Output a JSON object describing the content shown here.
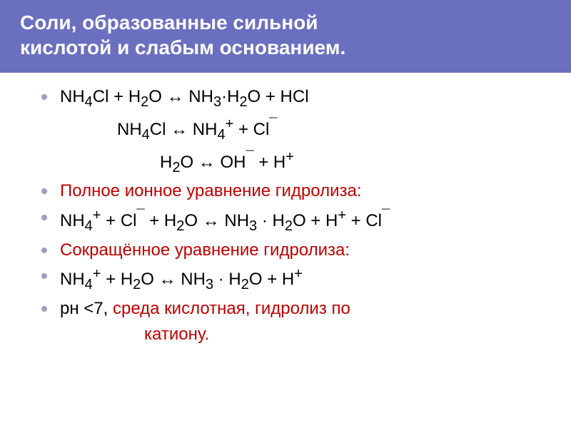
{
  "header": {
    "background_color": "#6a6fc0",
    "text_color": "#ffffff",
    "title_line1": "Соли, образованные сильной",
    "title_line2": "кислотой и слабым основанием."
  },
  "bullet_color": "#9ca0c0",
  "colors": {
    "black": "#000000",
    "red": "#c00000"
  },
  "lines": {
    "eq1": "NH<sub>4</sub>Cl + H<sub>2</sub>O ↔ NH<sub>3</sub>·H<sub>2</sub>O + HCl",
    "eq2": "NH<sub>4</sub>Cl ↔ NH<sub>4</sub><sup>+</sup> + Cl<sup>¯</sup>",
    "eq3": "H<sub>2</sub>O ↔ OH<sup>¯</sup> + H<sup>+</sup>",
    "label1": "Полное ионное уравнение гидролиза:",
    "eq4": " NH<sub>4</sub><sup>+</sup>  + Cl<sup>¯</sup> + H<sub>2</sub>O ↔ NH<sub>3</sub> · H<sub>2</sub>O + H<sup>+</sup> + Cl<sup>¯</sup>",
    "label2": "Сокращённое уравнение гидролиза:",
    "eq5": "NH<sub>4</sub><sup>+</sup> + H<sub>2</sub>O ↔ NH<sub>3</sub> · H<sub>2</sub>O + H<sup>+</sup>",
    "eq6a": "pн &lt;7, ",
    "eq6b": "среда кислотная, гидролиз по",
    "eq7": "катиону."
  }
}
